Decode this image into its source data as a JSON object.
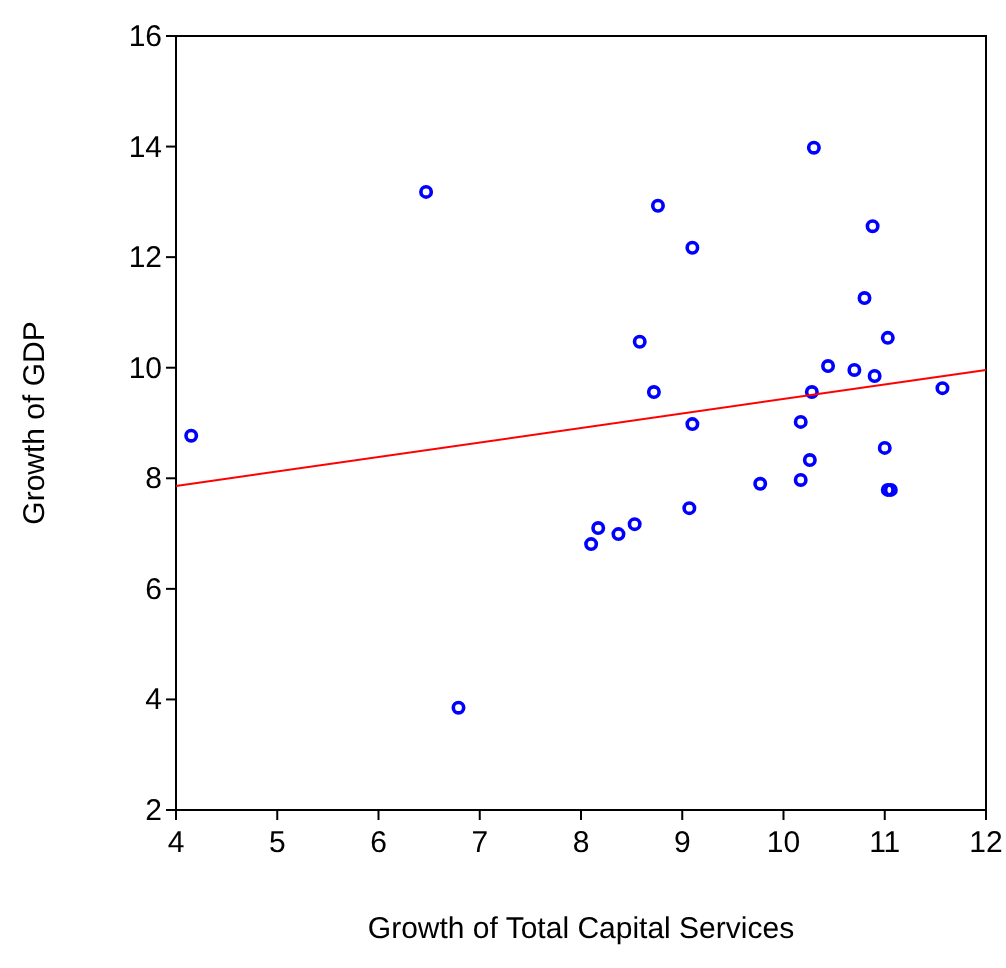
{
  "chart_data": {
    "type": "scatter",
    "xlabel": "Growth of Total Capital Services",
    "ylabel": "Growth of GDP",
    "xlim": [
      4,
      12
    ],
    "ylim": [
      2,
      16
    ],
    "xticks": [
      4,
      5,
      6,
      7,
      8,
      9,
      10,
      11,
      12
    ],
    "yticks": [
      2,
      4,
      6,
      8,
      10,
      12,
      14,
      16
    ],
    "grid": false,
    "series": [
      {
        "marker": "circle",
        "color": "#0000ff",
        "x": [
          4.15,
          6.47,
          8.76,
          9.1,
          10.3,
          10.88,
          10.8,
          11.03,
          8.58,
          10.44,
          10.7,
          10.9,
          8.72,
          10.28,
          11.57,
          9.1,
          10.17,
          11.0,
          10.26,
          10.17,
          9.77,
          11.03,
          11.06,
          9.07,
          8.53,
          8.37,
          8.17,
          8.1,
          6.79
        ],
        "values": [
          8.77,
          13.18,
          12.93,
          12.17,
          13.98,
          12.56,
          11.26,
          10.54,
          10.47,
          10.03,
          9.96,
          9.85,
          9.56,
          9.56,
          9.63,
          8.98,
          9.02,
          8.55,
          8.33,
          7.97,
          7.9,
          7.79,
          7.79,
          7.46,
          7.17,
          6.99,
          7.1,
          6.81,
          3.85
        ]
      },
      {
        "type": "line",
        "color": "#ff0000",
        "x": [
          4,
          12
        ],
        "values": [
          7.86,
          9.96
        ]
      }
    ]
  }
}
